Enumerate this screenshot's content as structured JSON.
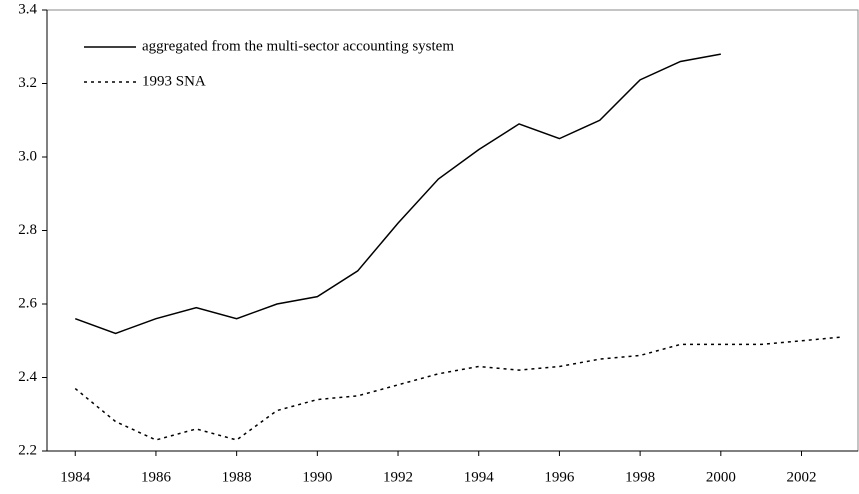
{
  "chart_data": {
    "type": "line",
    "x": [
      1984,
      1985,
      1986,
      1987,
      1988,
      1989,
      1990,
      1991,
      1992,
      1993,
      1994,
      1995,
      1996,
      1997,
      1998,
      1999,
      2000,
      2001,
      2002,
      2003
    ],
    "series": [
      {
        "name": "aggregated from the multi-sector accounting system",
        "color": "#000000",
        "dash": "solid",
        "values": [
          2.56,
          2.52,
          2.56,
          2.59,
          2.56,
          2.6,
          2.62,
          2.69,
          2.82,
          2.94,
          3.02,
          3.09,
          3.05,
          3.1,
          3.21,
          3.26,
          3.28,
          null,
          null,
          null
        ]
      },
      {
        "name": "1993 SNA",
        "color": "#000000",
        "dash": "dotted",
        "values": [
          2.37,
          2.28,
          2.23,
          2.26,
          2.23,
          2.31,
          2.34,
          2.35,
          2.38,
          2.41,
          2.43,
          2.42,
          2.43,
          2.45,
          2.46,
          2.49,
          2.49,
          2.49,
          2.5,
          2.51
        ]
      }
    ],
    "xlim": [
      1983.3,
      2003.4
    ],
    "xticks": [
      1984,
      1986,
      1988,
      1990,
      1992,
      1994,
      1996,
      1998,
      2000,
      2002
    ],
    "ylim": [
      2.2,
      3.4
    ],
    "yticks": [
      2.2,
      2.4,
      2.6,
      2.8,
      {
        "value": 3,
        "label": "3.0"
      },
      3.2,
      3.4
    ],
    "legend": "top-left"
  }
}
